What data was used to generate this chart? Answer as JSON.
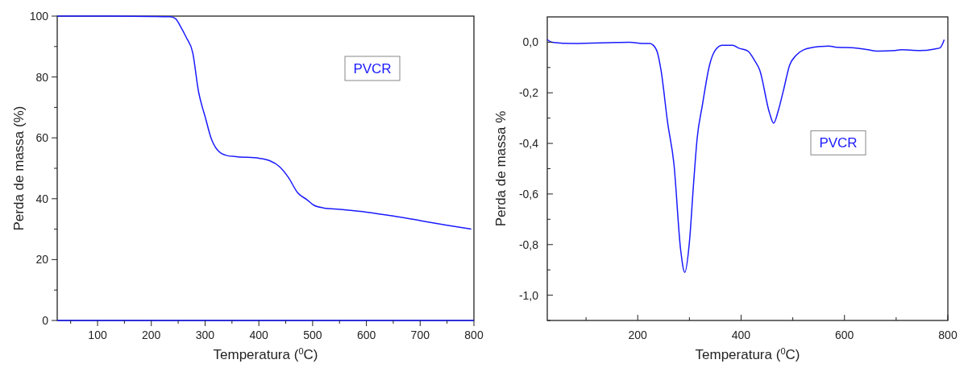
{
  "chart_data": [
    {
      "type": "line",
      "xlabel": "Temperatura ($^{0}$C)",
      "ylabel": "Perda de massa (%)",
      "xlim": [
        25,
        800
      ],
      "ylim": [
        0,
        100
      ],
      "xticks": [
        {
          "value": 50,
          "label": null
        },
        100,
        {
          "value": 150,
          "label": null
        },
        200,
        {
          "value": 250,
          "label": null
        },
        300,
        {
          "value": 350,
          "label": null
        },
        400,
        {
          "value": 450,
          "label": null
        },
        500,
        {
          "value": 550,
          "label": null
        },
        600,
        {
          "value": 650,
          "label": null
        },
        700,
        {
          "value": 750,
          "label": null
        },
        800
      ],
      "yticks": [
        0,
        {
          "value": 10,
          "label": null
        },
        20,
        {
          "value": 30,
          "label": null
        },
        40,
        {
          "value": 50,
          "label": null
        },
        60,
        {
          "value": 70,
          "label": null
        },
        80,
        {
          "value": 90,
          "label": null
        },
        100
      ],
      "legend": "top right",
      "grid": false,
      "series": [
        {
          "name": "PVCR",
          "color": "#1a1aff",
          "x": [
            25,
            100,
            200,
            235,
            245,
            253,
            265,
            277,
            288,
            295,
            300,
            311,
            323,
            340,
            360,
            400,
            420,
            438,
            455,
            472,
            490,
            502,
            520,
            550,
            600,
            650,
            700,
            750,
            795
          ],
          "values": [
            100,
            100,
            99.9,
            99.8,
            99.2,
            97,
            93,
            88,
            75,
            70,
            67,
            60,
            56,
            54.2,
            53.8,
            53.3,
            52.5,
            50.6,
            47,
            42,
            39.6,
            37.9,
            37,
            36.5,
            35.6,
            34.3,
            32.8,
            31.3,
            30
          ]
        },
        {
          "color": "#1a1aff",
          "x": [
            25,
            800
          ],
          "values": [
            0,
            0
          ]
        }
      ]
    },
    {
      "type": "line",
      "xlabel": "Temperatura ($^{0}$C)",
      "ylabel": "Perda de massa %",
      "xlim": [
        25,
        800
      ],
      "ylim": [
        -1.1,
        0.1
      ],
      "xticks": [
        {
          "value": 100,
          "label": null
        },
        200,
        {
          "value": 300,
          "label": null
        },
        400,
        {
          "value": 500,
          "label": null
        },
        600,
        {
          "value": 700,
          "label": null
        },
        800
      ],
      "yticks": [
        {
          "value": -1.1,
          "label": null
        },
        {
          "value": -1.0,
          "label": "-1,0"
        },
        {
          "value": -0.9,
          "label": null
        },
        {
          "value": -0.8,
          "label": "-0,8"
        },
        {
          "value": -0.7,
          "label": null
        },
        {
          "value": -0.6,
          "label": "-0,6"
        },
        {
          "value": -0.5,
          "label": null
        },
        {
          "value": -0.4,
          "label": "-0,4"
        },
        {
          "value": -0.3,
          "label": null
        },
        {
          "value": -0.2,
          "label": "-0,2"
        },
        {
          "value": -0.1,
          "label": null
        },
        {
          "value": 0,
          "label": "0,0"
        }
      ],
      "legend": "right",
      "grid": false,
      "series": [
        {
          "name": "PVCR",
          "color": "#1a1aff",
          "x": [
            25,
            34,
            75,
            185,
            209,
            223,
            229,
            238,
            245,
            258,
            270,
            283,
            291,
            300,
            308,
            315,
            325,
            339,
            349,
            363,
            384,
            395,
            413,
            426,
            436,
            455,
            463,
            472,
            482,
            494,
            506,
            521,
            553,
            570,
            582,
            623,
            646,
            663,
            698,
            710,
            745,
            774,
            785,
            793
          ],
          "values": [
            0.01,
            0,
            -0.005,
            0,
            -0.005,
            -0.005,
            -0.01,
            -0.04,
            -0.11,
            -0.32,
            -0.48,
            -0.82,
            -0.91,
            -0.79,
            -0.56,
            -0.38,
            -0.25,
            -0.09,
            -0.035,
            -0.012,
            -0.012,
            -0.023,
            -0.035,
            -0.072,
            -0.11,
            -0.28,
            -0.32,
            -0.27,
            -0.19,
            -0.09,
            -0.053,
            -0.03,
            -0.017,
            -0.015,
            -0.019,
            -0.023,
            -0.03,
            -0.035,
            -0.033,
            -0.03,
            -0.033,
            -0.027,
            -0.022,
            0.01
          ]
        }
      ]
    }
  ]
}
